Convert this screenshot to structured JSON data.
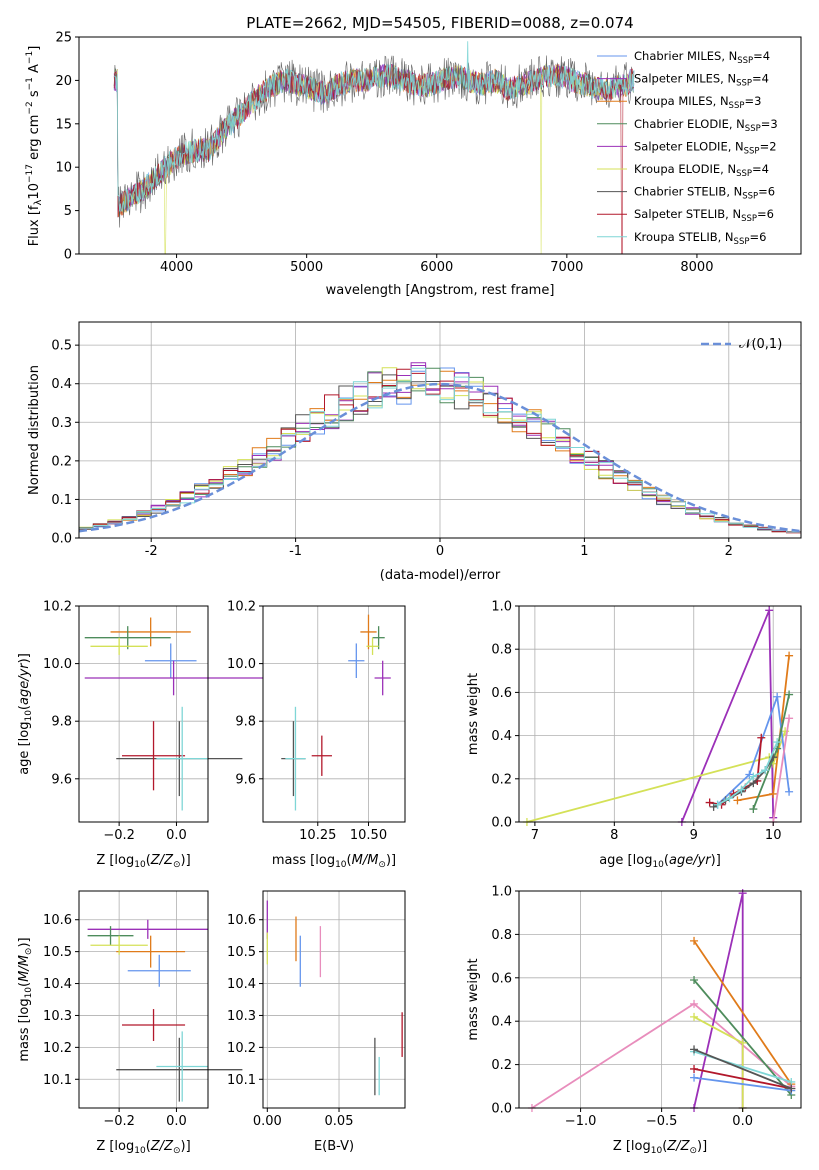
{
  "figure": {
    "title": "PLATE=2662, MJD=54505, FIBERID=0088, z=0.074"
  },
  "colors": {
    "grid": "#b0b0b0",
    "axis": "#000000"
  },
  "chart_data": [
    {
      "id": "spectrum",
      "type": "line",
      "title": "PLATE=2662, MJD=54505, FIBERID=0088, z=0.074",
      "xlabel": "wavelength [Angstrom, rest frame]",
      "ylabel": "Flux [f_λ10^-17 erg cm^-2 s^-1 A^-1]",
      "xlim": [
        3250,
        8800
      ],
      "ylim": [
        0,
        25
      ],
      "xticks": [
        4000,
        5000,
        6000,
        7000,
        8000
      ],
      "yticks": [
        0,
        5,
        10,
        15,
        20,
        25
      ],
      "grid": false,
      "legend_position": "top-right",
      "spectrum_trend": {
        "x": [
          3550,
          3650,
          3750,
          3850,
          3950,
          4050,
          4150,
          4250,
          4350,
          4450,
          4550,
          4650,
          4750,
          4850,
          4950,
          5050,
          5150,
          5250,
          5350,
          5450,
          5550,
          5650,
          5750,
          5850,
          5950,
          6050,
          6150,
          6250,
          6350,
          6450,
          6550,
          6650,
          6750,
          6850,
          6950,
          7050,
          7150,
          7250,
          7350,
          7450,
          7500
        ],
        "y": [
          5.5,
          6.5,
          7.5,
          9.0,
          10.5,
          11.5,
          12.0,
          12.0,
          14.0,
          15.5,
          17.0,
          18.5,
          19.5,
          20.0,
          19.5,
          19.0,
          18.5,
          19.5,
          20.0,
          20.0,
          20.5,
          20.5,
          20.0,
          19.5,
          19.5,
          20.0,
          20.5,
          20.0,
          19.5,
          20.0,
          19.0,
          19.5,
          20.0,
          20.5,
          20.5,
          20.0,
          19.5,
          19.0,
          19.0,
          19.5,
          20.0
        ]
      },
      "series": [
        {
          "name": "Chabrier MILES, N_SSP=4",
          "label_main": "Chabrier MILES, N",
          "label_sub": "SSP",
          "label_tail": "=4",
          "color": "#6495ed"
        },
        {
          "name": "Salpeter MILES, N_SSP=4",
          "label_main": "Salpeter MILES, N",
          "label_sub": "SSP",
          "label_tail": "=4",
          "color": "#9b30b8"
        },
        {
          "name": "Kroupa MILES, N_SSP=3",
          "label_main": "Kroupa MILES, N",
          "label_sub": "SSP",
          "label_tail": "=3",
          "color": "#e07b1a"
        },
        {
          "name": "Chabrier ELODIE, N_SSP=3",
          "label_main": "Chabrier ELODIE, N",
          "label_sub": "SSP",
          "label_tail": "=3",
          "color": "#4e8c5c"
        },
        {
          "name": "Salpeter ELODIE, N_SSP=2",
          "label_main": "Salpeter ELODIE, N",
          "label_sub": "SSP",
          "label_tail": "=2",
          "color": "#9b30b8"
        },
        {
          "name": "Kroupa ELODIE, N_SSP=4",
          "label_main": "Kroupa ELODIE, N",
          "label_sub": "SSP",
          "label_tail": "=4",
          "color": "#d4e157"
        },
        {
          "name": "Chabrier STELIB, N_SSP=6",
          "label_main": "Chabrier STELIB, N",
          "label_sub": "SSP",
          "label_tail": "=6",
          "color": "#555555"
        },
        {
          "name": "Salpeter STELIB, N_SSP=6",
          "label_main": "Salpeter STELIB, N",
          "label_sub": "SSP",
          "label_tail": "=6",
          "color": "#b2182b"
        },
        {
          "name": "Kroupa STELIB, N_SSP=6",
          "label_main": "Kroupa STELIB, N",
          "label_sub": "SSP",
          "label_tail": "=6",
          "color": "#7fd6d6"
        }
      ]
    },
    {
      "id": "residuals",
      "type": "bar",
      "xlabel": "(data-model)/error",
      "ylabel": "Normed distribution",
      "xlim": [
        -2.5,
        2.5
      ],
      "ylim": [
        0,
        0.56
      ],
      "xticks": [
        -2,
        -1,
        0,
        1,
        2
      ],
      "yticks": [
        0.0,
        0.1,
        0.2,
        0.3,
        0.4,
        0.5
      ],
      "grid": true,
      "legend_position": "top-right",
      "reference_curve": {
        "name": "𝒩(0,1)",
        "color": "#6a8fd8",
        "style": "dashed"
      },
      "bin_width": 0.1,
      "bin_start": -2.5,
      "bin_counts": 50,
      "colors": [
        "#6495ed",
        "#9b30b8",
        "#e07b1a",
        "#4e8c5c",
        "#9b30b8",
        "#d4e157",
        "#555555",
        "#b2182b",
        "#7fd6d6"
      ]
    },
    {
      "id": "age_vs_Z",
      "type": "scatter",
      "xlabel": "Z [log10(Z/Z☉)]",
      "ylabel": "age [log10(age/yr)]",
      "xlim": [
        -0.34,
        0.11
      ],
      "ylim": [
        9.45,
        10.2
      ],
      "xticks": [
        -0.2,
        0.0
      ],
      "xtick_labels": [
        "−0.2",
        "0.0"
      ],
      "yticks": [
        9.6,
        9.8,
        10.0,
        10.2
      ],
      "grid": true,
      "points": [
        {
          "color": "#6495ed",
          "x": -0.02,
          "y": 10.01,
          "xerr": 0.09,
          "yerr": 0.06
        },
        {
          "color": "#9b30b8",
          "x": -0.01,
          "y": 9.95,
          "xerr": 0.31,
          "yerr": 0.06
        },
        {
          "color": "#e07b1a",
          "x": -0.09,
          "y": 10.11,
          "xerr": 0.14,
          "yerr": 0.05
        },
        {
          "color": "#4e8c5c",
          "x": -0.17,
          "y": 10.09,
          "xerr": 0.15,
          "yerr": 0.04
        },
        {
          "color": "#d4e157",
          "x": -0.2,
          "y": 10.06,
          "xerr": 0.1,
          "yerr": 0.03
        },
        {
          "color": "#555555",
          "x": 0.01,
          "y": 9.67,
          "xerr": 0.22,
          "yerr": 0.13
        },
        {
          "color": "#b2182b",
          "x": -0.08,
          "y": 9.68,
          "xerr": 0.11,
          "yerr": 0.12
        },
        {
          "color": "#7fd6d6",
          "x": 0.02,
          "y": 9.67,
          "xerr": 0.09,
          "yerr": 0.18
        }
      ]
    },
    {
      "id": "age_vs_mass",
      "type": "scatter",
      "xlabel": "mass [log10(M/M☉)]",
      "ylabel": "",
      "xlim": [
        9.98,
        10.68
      ],
      "ylim": [
        9.45,
        10.2
      ],
      "xticks": [
        10.25,
        10.5
      ],
      "xtick_labels": [
        "10.25",
        "10.50"
      ],
      "yticks": [
        9.6,
        9.8,
        10.0,
        10.2
      ],
      "grid": true,
      "points": [
        {
          "color": "#6495ed",
          "x": 10.44,
          "y": 10.01,
          "xerr": 0.04,
          "yerr": 0.06
        },
        {
          "color": "#9b30b8",
          "x": 10.57,
          "y": 9.95,
          "xerr": 0.04,
          "yerr": 0.06
        },
        {
          "color": "#e07b1a",
          "x": 10.5,
          "y": 10.11,
          "xerr": 0.04,
          "yerr": 0.06
        },
        {
          "color": "#4e8c5c",
          "x": 10.55,
          "y": 10.09,
          "xerr": 0.03,
          "yerr": 0.04
        },
        {
          "color": "#d4e157",
          "x": 10.52,
          "y": 10.06,
          "xerr": 0.03,
          "yerr": 0.03
        },
        {
          "color": "#555555",
          "x": 10.13,
          "y": 9.67,
          "xerr": 0.06,
          "yerr": 0.13
        },
        {
          "color": "#b2182b",
          "x": 10.27,
          "y": 9.68,
          "xerr": 0.05,
          "yerr": 0.07
        },
        {
          "color": "#7fd6d6",
          "x": 10.14,
          "y": 9.67,
          "xerr": 0.05,
          "yerr": 0.18
        }
      ]
    },
    {
      "id": "massweight_vs_age",
      "type": "line",
      "xlabel": "age [log10(age/yr)]",
      "ylabel": "mass weight",
      "xlim": [
        6.8,
        10.35
      ],
      "ylim": [
        0,
        1
      ],
      "xticks": [
        7,
        8,
        9,
        10
      ],
      "yticks": [
        0.0,
        0.2,
        0.4,
        0.6,
        0.8,
        1.0
      ],
      "grid": true,
      "series": [
        {
          "color": "#9b30b8",
          "x": [
            8.85,
            9.95,
            10.0
          ],
          "y": [
            0.0,
            0.98,
            0.02
          ]
        },
        {
          "color": "#d4e157",
          "x": [
            6.9,
            9.95,
            10.0,
            10.15
          ],
          "y": [
            0.0,
            0.3,
            0.27,
            0.42
          ]
        },
        {
          "color": "#e07b1a",
          "x": [
            9.55,
            10.0,
            10.2
          ],
          "y": [
            0.1,
            0.13,
            0.77
          ]
        },
        {
          "color": "#6495ed",
          "x": [
            9.3,
            9.7,
            10.05,
            10.2
          ],
          "y": [
            0.08,
            0.22,
            0.58,
            0.14
          ]
        },
        {
          "color": "#4e8c5c",
          "x": [
            9.75,
            10.05,
            10.2
          ],
          "y": [
            0.06,
            0.34,
            0.59
          ]
        },
        {
          "color": "#b2182b",
          "x": [
            9.2,
            9.35,
            9.5,
            9.65,
            9.8,
            9.85
          ],
          "y": [
            0.09,
            0.08,
            0.13,
            0.16,
            0.19,
            0.39
          ]
        },
        {
          "color": "#555555",
          "x": [
            9.25,
            9.4,
            9.6,
            9.75,
            9.9,
            10.0
          ],
          "y": [
            0.07,
            0.1,
            0.14,
            0.18,
            0.24,
            0.3
          ]
        },
        {
          "color": "#7fd6d6",
          "x": [
            9.3,
            9.45,
            9.6,
            9.75,
            9.9,
            10.05
          ],
          "y": [
            0.08,
            0.11,
            0.15,
            0.21,
            0.24,
            0.37
          ]
        },
        {
          "color": "#e88dbc",
          "x": [
            10.0,
            10.2
          ],
          "y": [
            0.0,
            0.48
          ]
        }
      ]
    },
    {
      "id": "mass_vs_Z",
      "type": "scatter",
      "xlabel": "Z [log10(Z/Z☉)]",
      "ylabel": "mass [log10(M/M☉)]",
      "xlim": [
        -0.34,
        0.11
      ],
      "ylim": [
        10.01,
        10.69
      ],
      "xticks": [
        -0.2,
        0.0
      ],
      "xtick_labels": [
        "−0.2",
        "0.0"
      ],
      "yticks": [
        10.1,
        10.2,
        10.3,
        10.4,
        10.5,
        10.6
      ],
      "grid": true,
      "points": [
        {
          "color": "#6495ed",
          "x": -0.06,
          "y": 10.44,
          "xerr": 0.11,
          "yerr": 0.05
        },
        {
          "color": "#9b30b8",
          "x": -0.1,
          "y": 10.57,
          "xerr": 0.21,
          "yerr": 0.03
        },
        {
          "color": "#e07b1a",
          "x": -0.09,
          "y": 10.5,
          "xerr": 0.12,
          "yerr": 0.05
        },
        {
          "color": "#4e8c5c",
          "x": -0.23,
          "y": 10.55,
          "xerr": 0.08,
          "yerr": 0.03
        },
        {
          "color": "#d4e157",
          "x": -0.2,
          "y": 10.52,
          "xerr": 0.1,
          "yerr": 0.03
        },
        {
          "color": "#555555",
          "x": 0.01,
          "y": 10.13,
          "xerr": 0.22,
          "yerr": 0.1
        },
        {
          "color": "#b2182b",
          "x": -0.08,
          "y": 10.27,
          "xerr": 0.11,
          "yerr": 0.05
        },
        {
          "color": "#7fd6d6",
          "x": 0.02,
          "y": 10.14,
          "xerr": 0.09,
          "yerr": 0.11
        }
      ]
    },
    {
      "id": "mass_vs_ebv",
      "type": "scatter",
      "xlabel": "E(B-V)",
      "ylabel": "",
      "xlim": [
        -0.003,
        0.096
      ],
      "ylim": [
        10.01,
        10.69
      ],
      "xticks": [
        0.0,
        0.05
      ],
      "xtick_labels": [
        "0.00",
        "0.05"
      ],
      "yticks": [
        10.1,
        10.2,
        10.3,
        10.4,
        10.5,
        10.6
      ],
      "grid": true,
      "points": [
        {
          "color": "#9b30b8",
          "x": 0.0,
          "y": 10.6,
          "xerr": 0,
          "yerr": 0.06
        },
        {
          "color": "#d4e157",
          "x": 0.0,
          "y": 10.51,
          "xerr": 0,
          "yerr": 0.05
        },
        {
          "color": "#e07b1a",
          "x": 0.02,
          "y": 10.54,
          "xerr": 0,
          "yerr": 0.07
        },
        {
          "color": "#6495ed",
          "x": 0.023,
          "y": 10.47,
          "xerr": 0,
          "yerr": 0.08
        },
        {
          "color": "#e88dbc",
          "x": 0.037,
          "y": 10.5,
          "xerr": 0,
          "yerr": 0.08
        },
        {
          "color": "#555555",
          "x": 0.075,
          "y": 10.14,
          "xerr": 0,
          "yerr": 0.09
        },
        {
          "color": "#7fd6d6",
          "x": 0.078,
          "y": 10.11,
          "xerr": 0,
          "yerr": 0.06
        },
        {
          "color": "#b2182b",
          "x": 0.094,
          "y": 10.24,
          "xerr": 0,
          "yerr": 0.07
        }
      ]
    },
    {
      "id": "massweight_vs_Z",
      "type": "line",
      "xlabel": "Z [log10(Z/Z☉)]",
      "ylabel": "mass weight",
      "xlim": [
        -1.38,
        0.36
      ],
      "ylim": [
        0,
        1
      ],
      "xticks": [
        -1.0,
        -0.5,
        0.0
      ],
      "xtick_labels": [
        "−1.0",
        "−0.5",
        "0.0"
      ],
      "yticks": [
        0.0,
        0.2,
        0.4,
        0.6,
        0.8,
        1.0
      ],
      "grid": true,
      "series": [
        {
          "color": "#e88dbc",
          "x": [
            -1.3,
            -0.3,
            0.3
          ],
          "y": [
            0.0,
            0.48,
            0.1
          ]
        },
        {
          "color": "#9b30b8",
          "x": [
            -0.3,
            0.0,
            0.0
          ],
          "y": [
            0.0,
            0.99,
            0.0
          ]
        },
        {
          "color": "#e07b1a",
          "x": [
            -0.3,
            0.3
          ],
          "y": [
            0.77,
            0.11
          ]
        },
        {
          "color": "#4e8c5c",
          "x": [
            -0.3,
            0.3
          ],
          "y": [
            0.59,
            0.06
          ]
        },
        {
          "color": "#d4e157",
          "x": [
            -0.3,
            0.0,
            0.0
          ],
          "y": [
            0.42,
            0.3,
            0.0
          ]
        },
        {
          "color": "#6495ed",
          "x": [
            -0.3,
            0.3
          ],
          "y": [
            0.14,
            0.08
          ]
        },
        {
          "color": "#b2182b",
          "x": [
            -0.3,
            0.3
          ],
          "y": [
            0.18,
            0.09
          ]
        },
        {
          "color": "#7fd6d6",
          "x": [
            -0.3,
            0.3
          ],
          "y": [
            0.26,
            0.12
          ]
        },
        {
          "color": "#555555",
          "x": [
            -0.3,
            0.3
          ],
          "y": [
            0.27,
            0.09
          ]
        }
      ]
    }
  ]
}
